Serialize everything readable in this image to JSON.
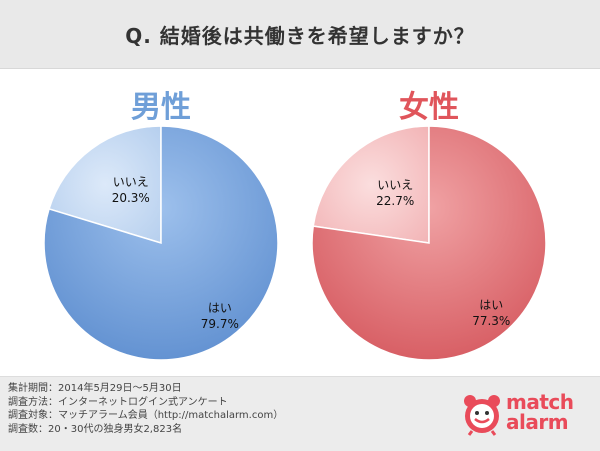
{
  "title": "Q. 結婚後は共働きを希望しますか？",
  "chart_data": [
    {
      "type": "pie",
      "title": "男性",
      "slices": [
        {
          "label": "いいえ",
          "value": 20.3,
          "value_label": "20.3%",
          "color": "#c9dcf4"
        },
        {
          "label": "はい",
          "value": 79.7,
          "value_label": "79.7%",
          "color": "#7aa6de"
        }
      ],
      "title_color": "#6f9fd8"
    },
    {
      "type": "pie",
      "title": "女性",
      "slices": [
        {
          "label": "いいえ",
          "value": 22.7,
          "value_label": "22.7%",
          "color": "#f6c6c8"
        },
        {
          "label": "はい",
          "value": 77.3,
          "value_label": "77.3%",
          "color": "#e57c7f"
        }
      ],
      "title_color": "#e0555b"
    }
  ],
  "notes": [
    "集計期間：2014年5月29日〜5月30日",
    "調査方法：インターネットログイン式アンケート",
    "調査対象：マッチアラーム会員（http://matchalarm.com）",
    "調査数：20・30代の独身男女2,823名"
  ],
  "logo": {
    "line1": "match",
    "line2": "alarm",
    "brand_color": "#e94b5a"
  }
}
